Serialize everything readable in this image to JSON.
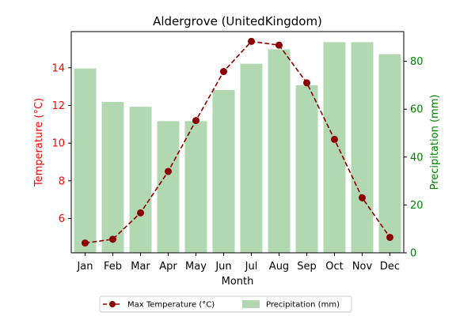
{
  "chart_data": {
    "type": "bar+line",
    "title": "Aldergrove (UnitedKingdom)",
    "xlabel": "Month",
    "ylabel_left": "Temperature (°C)",
    "ylabel_right": "Precipitation (mm)",
    "categories": [
      "Jan",
      "Feb",
      "Mar",
      "Apr",
      "May",
      "Jun",
      "Jul",
      "Aug",
      "Sep",
      "Oct",
      "Nov",
      "Dec"
    ],
    "series": [
      {
        "name": "Max Temperature (°C)",
        "type": "line",
        "axis": "left",
        "color": "#8b0000",
        "style": "dashed",
        "marker": "circle",
        "values": [
          4.7,
          4.9,
          6.3,
          8.5,
          11.2,
          13.8,
          15.4,
          15.2,
          13.2,
          10.2,
          7.1,
          5.0
        ]
      },
      {
        "name": "Precipitation (mm)",
        "type": "bar",
        "axis": "right",
        "color": "#b2d8b2",
        "values": [
          77,
          63,
          61,
          55,
          55,
          68,
          79,
          85,
          70,
          88,
          88,
          83
        ]
      }
    ],
    "ylim_left": [
      4.18,
      15.92
    ],
    "ylim_right": [
      0,
      92.4
    ],
    "yticks_left": [
      6,
      8,
      10,
      12,
      14
    ],
    "yticks_right": [
      0,
      20,
      40,
      60,
      80
    ],
    "left_axis_color": "#ff0000",
    "right_axis_color": "#008000",
    "grid": false,
    "legend_position": "bottom-center"
  }
}
